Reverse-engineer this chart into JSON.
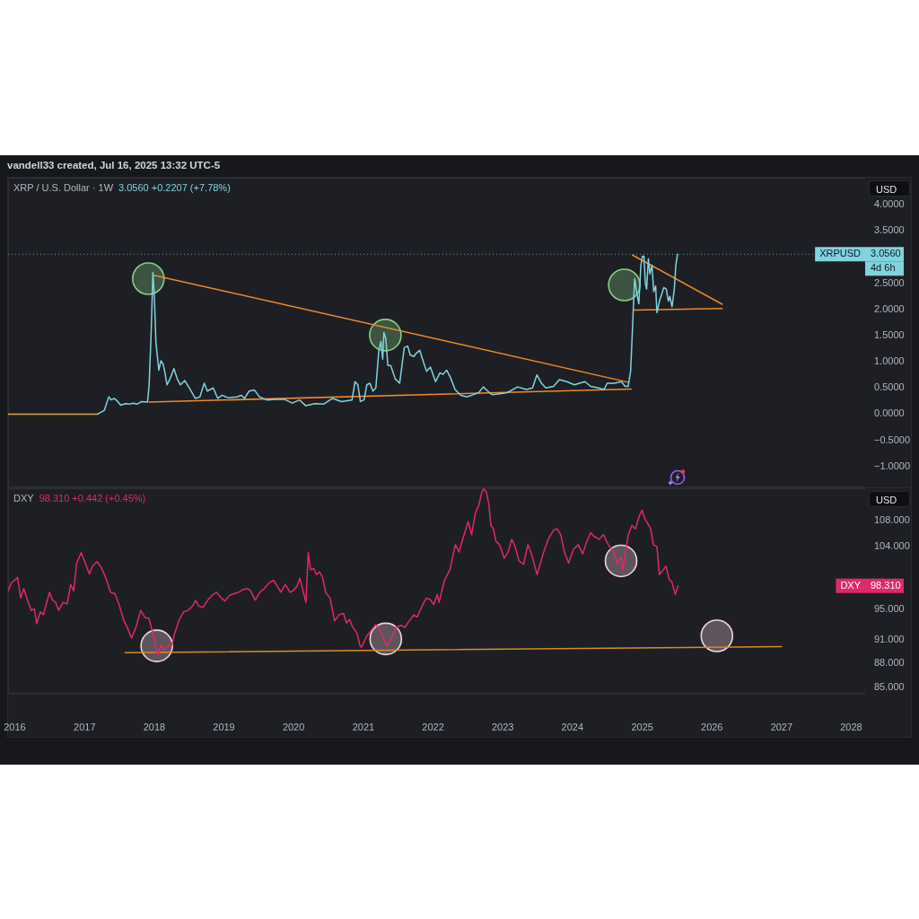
{
  "chart_data": [
    {
      "type": "line",
      "title": "XRP / U.S. Dollar · 1W",
      "subtitle": "3.0560 +0.2207 (+7.78%)",
      "ylabel": "USD",
      "annotations": [
        "vandell33 created, Jul 16, 2025 13:32 UTC-5",
        {
          "text": "XRPUSD",
          "y": 3.056
        },
        {
          "text": "3.0560",
          "y": 3.056
        },
        "4d 6h"
      ],
      "xlim": [
        "2015-11-27",
        "2028-03-14"
      ],
      "ylim": [
        -1.4,
        4.52
      ],
      "yticks": [
        {
          "value": 4,
          "label": "4.0000"
        },
        {
          "value": 3.5,
          "label": "3.5000"
        },
        {
          "value": 2.5,
          "label": "2.5000"
        },
        {
          "value": 2,
          "label": "2.0000"
        },
        {
          "value": 1.5,
          "label": "1.5000"
        },
        {
          "value": 1,
          "label": "1.0000"
        },
        {
          "value": 0.5,
          "label": "0.5000"
        },
        {
          "value": 0,
          "label": "0.0000"
        },
        {
          "value": -0.5,
          "label": "−0.5000"
        },
        {
          "value": -1,
          "label": "−1.0000"
        }
      ],
      "tick_labels": "y",
      "ref_lines": [
        {
          "axis": "y",
          "value": 3.056,
          "color": "#5f9ea6",
          "line_style": "dotted"
        }
      ],
      "series": [
        {
          "color": "#80d4de",
          "x": [
            "2017-03-13",
            "2017-04-14",
            "2017-05-08",
            "2017-05-20",
            "2017-06-05",
            "2017-06-24",
            "2017-07-09",
            "2017-08-02",
            "2017-08-25",
            "2017-09-10",
            "2017-10-03",
            "2017-10-27",
            "2017-11-27",
            "2017-12-05",
            "2017-12-15",
            "2017-12-25",
            "2018-01-01",
            "2018-01-10",
            "2018-01-16",
            "2018-01-25",
            "2018-02-05",
            "2018-02-16",
            "2018-02-26",
            "2018-03-09",
            "2018-03-24",
            "2018-04-14",
            "2018-05-02",
            "2018-05-18",
            "2018-06-10",
            "2018-07-04",
            "2018-08-04",
            "2018-08-28",
            "2018-09-20",
            "2018-10-06",
            "2018-11-06",
            "2018-11-30",
            "2018-12-23",
            "2019-01-23",
            "2019-03-11",
            "2019-04-03",
            "2019-04-19",
            "2019-05-13",
            "2019-06-10",
            "2019-07-06",
            "2019-08-14",
            "2019-09-30",
            "2019-11-16",
            "2019-12-25",
            "2020-02-02",
            "2020-03-05",
            "2020-04-21",
            "2020-06-06",
            "2020-07-23",
            "2020-09-08",
            "2020-11-02",
            "2020-11-18",
            "2020-12-03",
            "2020-12-16",
            "2021-01-04",
            "2021-01-19",
            "2021-02-04",
            "2021-02-20",
            "2021-03-07",
            "2021-03-23",
            "2021-04-03",
            "2021-04-12",
            "2021-04-18",
            "2021-04-28",
            "2021-05-09",
            "2021-05-24",
            "2021-06-17",
            "2021-07-10",
            "2021-08-03",
            "2021-08-21",
            "2021-09-03",
            "2021-09-22",
            "2021-10-04",
            "2021-10-23",
            "2021-11-12",
            "2021-11-28",
            "2021-12-18",
            "2022-01-14",
            "2022-02-06",
            "2022-02-22",
            "2022-03-13",
            "2022-04-02",
            "2022-04-26",
            "2022-05-27",
            "2022-06-27",
            "2022-07-29",
            "2022-08-28",
            "2022-09-21",
            "2022-10-14",
            "2022-11-07",
            "2022-12-16",
            "2023-01-24",
            "2023-03-20",
            "2023-05-06",
            "2023-06-06",
            "2023-06-29",
            "2023-07-23",
            "2023-08-15",
            "2023-09-24",
            "2023-10-25",
            "2023-12-03",
            "2024-01-11",
            "2024-03-06",
            "2024-04-06",
            "2024-05-16",
            "2024-06-15",
            "2024-07-01",
            "2024-08-09",
            "2024-09-14",
            "2024-10-03",
            "2024-10-19",
            "2024-11-01",
            "2024-11-08",
            "2024-11-16",
            "2024-11-22",
            "2024-12-05",
            "2024-12-14",
            "2024-12-25",
            "2025-01-02",
            "2025-01-10",
            "2025-01-17",
            "2025-01-24",
            "2025-02-02",
            "2025-02-10",
            "2025-02-21",
            "2025-03-02",
            "2025-03-12",
            "2025-03-19",
            "2025-04-01",
            "2025-04-12",
            "2025-04-24",
            "2025-05-07",
            "2025-05-18",
            "2025-05-26",
            "2025-06-06",
            "2025-06-18",
            "2025-06-26",
            "2025-07-05"
          ],
          "values": [
            0.01,
            0.07,
            0.33,
            0.27,
            0.3,
            0.24,
            0.17,
            0.2,
            0.19,
            0.21,
            0.19,
            0.24,
            0.23,
            0.56,
            1.48,
            2.71,
            2.28,
            1.36,
            1.15,
            0.84,
            1.02,
            0.96,
            0.79,
            0.56,
            0.67,
            0.87,
            0.67,
            0.56,
            0.64,
            0.5,
            0.3,
            0.33,
            0.59,
            0.44,
            0.5,
            0.3,
            0.36,
            0.31,
            0.33,
            0.36,
            0.3,
            0.44,
            0.46,
            0.33,
            0.27,
            0.28,
            0.28,
            0.21,
            0.27,
            0.16,
            0.2,
            0.19,
            0.3,
            0.24,
            0.27,
            0.62,
            0.56,
            0.24,
            0.27,
            0.56,
            0.59,
            0.44,
            0.5,
            1.22,
            1.39,
            1.05,
            1.56,
            1.45,
            0.93,
            0.93,
            0.67,
            0.59,
            1.27,
            1.3,
            1.13,
            1.1,
            1.16,
            1.22,
            0.99,
            0.82,
            0.9,
            0.62,
            0.79,
            0.76,
            0.84,
            0.7,
            0.47,
            0.36,
            0.33,
            0.37,
            0.41,
            0.52,
            0.44,
            0.37,
            0.39,
            0.41,
            0.52,
            0.47,
            0.5,
            0.75,
            0.59,
            0.5,
            0.53,
            0.66,
            0.62,
            0.56,
            0.62,
            0.53,
            0.5,
            0.47,
            0.59,
            0.59,
            0.62,
            0.53,
            0.53,
            0.82,
            1.39,
            2.08,
            2.59,
            2.28,
            2.11,
            2.85,
            3.02,
            3.02,
            2.51,
            2.39,
            2.97,
            2.68,
            2.85,
            2.34,
            2.45,
            1.94,
            2.16,
            2.28,
            2.42,
            2.39,
            2.16,
            2.25,
            2.05,
            2.39,
            2.85,
            3.056
          ]
        },
        {
          "color": "#d9a84e",
          "x": [
            "2015-11-27",
            "2017-03-13"
          ],
          "values": [
            0,
            0
          ]
        },
        {
          "color": "#f0892a",
          "x": [
            "2017-12-25",
            "2024-10-19"
          ],
          "values": [
            2.66,
            0.61
          ]
        },
        {
          "color": "#f0892a",
          "x": [
            "2017-12-05",
            "2024-11-04"
          ],
          "values": [
            0.23,
            0.48
          ]
        },
        {
          "color": "#f0892a",
          "x": [
            "2024-11-11",
            "2026-02-24"
          ],
          "values": [
            3.04,
            2.1
          ]
        },
        {
          "color": "#f0892a",
          "x": [
            "2024-11-16",
            "2026-02-24"
          ],
          "values": [
            1.99,
            2.02
          ]
        },
        {
          "type": "scatter",
          "marker": "circle",
          "color": "#86cf86",
          "x": [
            "2017-12-01",
            "2021-04-26",
            "2024-09-29"
          ],
          "values": [
            2.59,
            1.51,
            2.47
          ]
        }
      ]
    },
    {
      "type": "line",
      "title": "DXY",
      "subtitle": "98.310 +0.442 (+0.45%)",
      "ylabel": "USD",
      "annotations": [
        {
          "text": "DXY",
          "y": 98.31
        },
        {
          "text": "98.310",
          "y": 98.31
        }
      ],
      "xlim": [
        "2015-11-27",
        "2028-03-14"
      ],
      "xticks": [
        "2016",
        "2017",
        "2018",
        "2019",
        "2020",
        "2021",
        "2022",
        "2023",
        "2024",
        "2025",
        "2026",
        "2027",
        "2028"
      ],
      "ylim": [
        84.2,
        113.1
      ],
      "yticks": [
        {
          "value": 108,
          "label": "108.000"
        },
        {
          "value": 104,
          "label": "104.000"
        },
        {
          "value": 95,
          "label": "95.000"
        },
        {
          "value": 91,
          "label": "91.000"
        },
        {
          "value": 88,
          "label": "88.000"
        },
        {
          "value": 85,
          "label": "85.000"
        }
      ],
      "log": "y",
      "series": [
        {
          "color": "#e0286a",
          "x": [
            "2015-11-27",
            "2015-12-14",
            "2016-01-16",
            "2016-02-01",
            "2016-02-17",
            "2016-03-12",
            "2016-03-28",
            "2016-04-13",
            "2016-04-25",
            "2016-05-14",
            "2016-05-30",
            "2016-07-01",
            "2016-07-17",
            "2016-08-02",
            "2016-08-18",
            "2016-09-10",
            "2016-10-01",
            "2016-10-20",
            "2016-11-05",
            "2016-11-20",
            "2016-12-14",
            "2016-12-30",
            "2017-01-26",
            "2017-02-11",
            "2017-03-07",
            "2017-03-30",
            "2017-04-23",
            "2017-05-17",
            "2017-06-09",
            "2017-07-03",
            "2017-07-26",
            "2017-08-11",
            "2017-09-04",
            "2017-09-28",
            "2017-10-22",
            "2017-11-14",
            "2017-12-03",
            "2017-12-28",
            "2018-01-14",
            "2018-01-21",
            "2018-02-06",
            "2018-02-22",
            "2018-03-17",
            "2018-04-02",
            "2018-04-17",
            "2018-05-11",
            "2018-06-04",
            "2018-06-27",
            "2018-07-21",
            "2018-08-06",
            "2018-08-22",
            "2018-09-14",
            "2018-10-08",
            "2018-11-01",
            "2018-11-24",
            "2018-12-18",
            "2019-01-07",
            "2019-01-31",
            "2019-02-24",
            "2019-03-19",
            "2019-04-12",
            "2019-05-06",
            "2019-05-21",
            "2019-06-14",
            "2019-07-08",
            "2019-07-31",
            "2019-08-24",
            "2019-09-17",
            "2019-10-03",
            "2019-10-26",
            "2019-11-19",
            "2019-12-13",
            "2019-12-28",
            "2020-01-18",
            "2020-02-03",
            "2020-03-06",
            "2020-03-18",
            "2020-03-30",
            "2020-04-15",
            "2020-05-01",
            "2020-05-16",
            "2020-06-01",
            "2020-06-17",
            "2020-07-10",
            "2020-08-03",
            "2020-08-26",
            "2020-09-19",
            "2020-10-04",
            "2020-10-20",
            "2020-11-05",
            "2020-11-28",
            "2020-12-14",
            "2020-12-22",
            "2021-01-19",
            "2021-03-07",
            "2021-04-04",
            "2021-05-03",
            "2021-05-31",
            "2021-06-19",
            "2021-07-17",
            "2021-08-05",
            "2021-08-24",
            "2021-09-22",
            "2021-10-10",
            "2021-11-08",
            "2021-11-27",
            "2021-12-16",
            "2022-01-04",
            "2022-01-23",
            "2022-02-01",
            "2022-03-02",
            "2022-03-30",
            "2022-04-28",
            "2022-05-17",
            "2022-06-05",
            "2022-07-04",
            "2022-07-22",
            "2022-08-11",
            "2022-08-29",
            "2022-09-12",
            "2022-09-23",
            "2022-10-06",
            "2022-10-20",
            "2022-10-31",
            "2022-11-13",
            "2022-11-26",
            "2022-12-15",
            "2023-01-09",
            "2023-01-29",
            "2023-02-17",
            "2023-03-07",
            "2023-03-27",
            "2023-04-20",
            "2023-05-13",
            "2023-06-01",
            "2023-06-30",
            "2023-07-29",
            "2023-08-27",
            "2023-09-24",
            "2023-10-13",
            "2023-11-01",
            "2023-11-20",
            "2023-12-12",
            "2024-01-07",
            "2024-02-01",
            "2024-02-24",
            "2024-03-14",
            "2024-04-06",
            "2024-04-21",
            "2024-05-20",
            "2024-06-12",
            "2024-07-07",
            "2024-08-04",
            "2024-08-24",
            "2024-09-12",
            "2024-09-21",
            "2024-10-20",
            "2024-11-08",
            "2024-11-27",
            "2024-12-16",
            "2024-12-31",
            "2025-01-14",
            "2025-01-30",
            "2025-02-14",
            "2025-02-28",
            "2025-03-19",
            "2025-04-01",
            "2025-04-21",
            "2025-05-06",
            "2025-05-21",
            "2025-06-06",
            "2025-06-23",
            "2025-07-08"
          ],
          "values": [
            97.6,
            98.7,
            99.5,
            96.6,
            97.9,
            96.0,
            94.9,
            95.1,
            93.1,
            94.7,
            94.3,
            97.4,
            96.3,
            96.0,
            94.9,
            96.0,
            95.8,
            98.5,
            97.6,
            101.5,
            103.1,
            102.0,
            100.0,
            101.1,
            101.8,
            100.9,
            99.4,
            97.4,
            97.2,
            95.5,
            93.5,
            92.7,
            91.2,
            92.7,
            94.9,
            93.9,
            93.9,
            91.6,
            89.3,
            89.1,
            90.2,
            89.7,
            90.3,
            90.2,
            91.7,
            93.6,
            94.7,
            94.9,
            95.5,
            96.3,
            95.5,
            95.3,
            96.3,
            97.0,
            97.4,
            96.6,
            96.2,
            97.0,
            97.2,
            97.4,
            97.8,
            97.9,
            97.6,
            96.3,
            97.4,
            97.9,
            98.7,
            99.1,
            98.5,
            97.4,
            98.5,
            97.4,
            97.6,
            98.2,
            99.4,
            96.0,
            103.1,
            100.6,
            100.8,
            99.9,
            100.3,
            99.5,
            97.4,
            96.6,
            93.5,
            94.3,
            94.5,
            93.2,
            93.7,
            92.7,
            91.9,
            90.2,
            90.0,
            91.5,
            93.0,
            92.0,
            90.1,
            91.3,
            92.6,
            92.9,
            92.6,
            93.3,
            94.3,
            94.0,
            95.7,
            96.6,
            96.4,
            95.7,
            97.1,
            96.0,
            99.1,
            100.6,
            104.3,
            103.2,
            105.1,
            107.8,
            105.8,
            109.2,
            110.4,
            112.3,
            113.0,
            112.6,
            110.6,
            107.2,
            106.7,
            104.8,
            104.3,
            102.3,
            103.2,
            105.1,
            104.0,
            101.9,
            101.4,
            104.3,
            102.9,
            99.9,
            102.7,
            105.1,
            106.5,
            106.7,
            105.8,
            103.2,
            101.6,
            103.6,
            104.3,
            102.9,
            104.6,
            106.1,
            105.6,
            105.1,
            105.8,
            104.3,
            103.2,
            101.4,
            102.5,
            100.6,
            105.8,
            107.2,
            106.7,
            108.6,
            109.6,
            108.3,
            107.5,
            106.7,
            104.3,
            104.0,
            99.9,
            100.6,
            101.1,
            99.3,
            98.8,
            97.1,
            98.31
          ]
        },
        {
          "color": "#d98a2b",
          "x": [
            "2017-08-01",
            "2027-01-01"
          ],
          "values": [
            89.3,
            90.1
          ]
        },
        {
          "type": "scatter",
          "marker": "circle",
          "color": "#f2d4da",
          "x": [
            "2018-01-14",
            "2021-04-28",
            "2024-09-12",
            "2026-01-27"
          ],
          "values": [
            90.2,
            91.1,
            101.9,
            91.5
          ]
        }
      ]
    }
  ]
}
